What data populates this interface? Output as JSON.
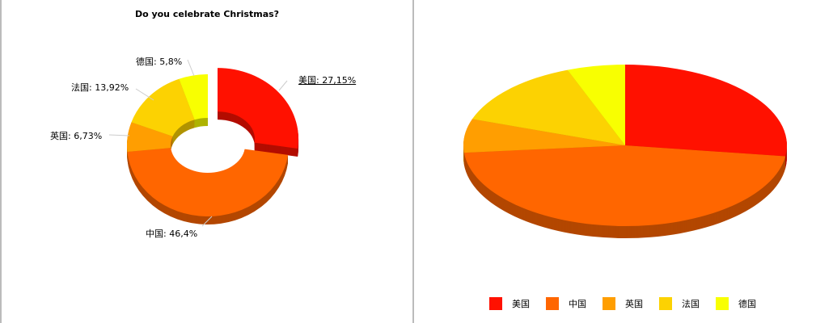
{
  "chart_data": [
    {
      "type": "pie",
      "variant": "3d-donut",
      "title": "Do you celebrate Christmas?",
      "categories": [
        "美国",
        "中国",
        "英国",
        "法国",
        "德国"
      ],
      "values": [
        27.15,
        46.4,
        6.73,
        13.92,
        5.8
      ],
      "labels": [
        "美国: 27,15%",
        "中国: 46,4%",
        "英国: 6,73%",
        "法国: 13,92%",
        "德国: 5,8%"
      ],
      "colors": [
        "#FF1100",
        "#FF6600",
        "#FF9E01",
        "#FCD202",
        "#F8FF01"
      ],
      "exploded": "美国"
    },
    {
      "type": "pie",
      "variant": "3d",
      "categories": [
        "美国",
        "中国",
        "英国",
        "法国",
        "德国"
      ],
      "values": [
        27.15,
        46.4,
        6.73,
        13.92,
        5.8
      ],
      "colors": [
        "#FF1100",
        "#FF6600",
        "#FF9E01",
        "#FCD202",
        "#F8FF01"
      ],
      "legend": {
        "position": "bottom",
        "items": [
          "美国",
          "中国",
          "英国",
          "法国",
          "德国"
        ]
      }
    }
  ]
}
